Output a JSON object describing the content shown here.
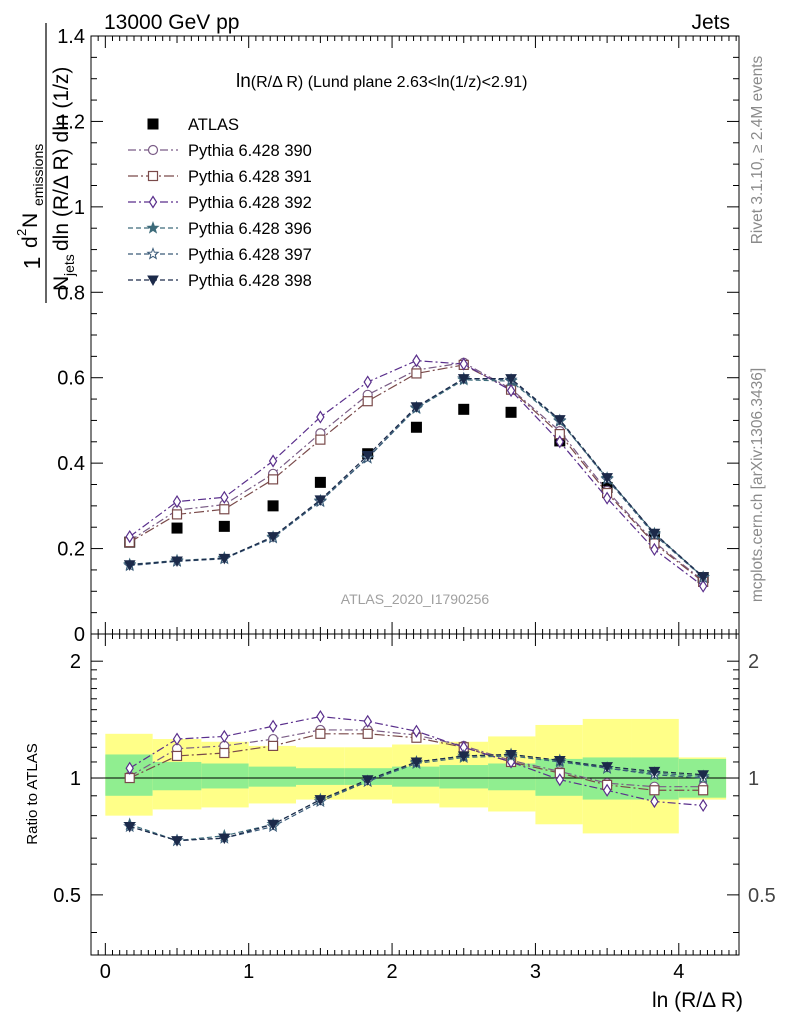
{
  "header": {
    "left": "13000 GeV pp",
    "right": "Jets"
  },
  "side_labels": {
    "rivet": "Rivet 3.1.10, ≥ 2.4M events",
    "mcplots": "mcplots.cern.ch [arXiv:1306.3436]"
  },
  "watermark": "ATLAS_2020_I1790256",
  "colors": {
    "data": "#000000",
    "band_inner": "#90ee90",
    "band_outer": "#ffff88",
    "p390": "#7a5c86",
    "p391": "#7a4a4a",
    "p392": "#5a2f8c",
    "p396": "#3d6b7a",
    "p397": "#3a5a78",
    "p398": "#1c2a4a"
  },
  "chart_data": [
    {
      "type": "scatter",
      "title_main": "ln",
      "title_rest": "(R/Δ R) (Lund plane 2.63<ln(1/z)<2.91)",
      "ylabel_parts": [
        "1",
        "N",
        "jets",
        "dln (R/Δ R) dln (1/z)",
        "d",
        "2",
        " N",
        "emissions"
      ],
      "xlim": [
        -0.1,
        4.42
      ],
      "ylim": [
        0,
        1.4
      ],
      "yticks": [
        "0",
        "0.2",
        "0.4",
        "0.6",
        "0.8",
        "1",
        "1.2",
        "1.4"
      ],
      "yticks_values": [
        0,
        0.2,
        0.4,
        0.6,
        0.8,
        1.0,
        1.2,
        1.4
      ],
      "legend_position": "top-left",
      "x": [
        0.17,
        0.5,
        0.83,
        1.17,
        1.5,
        1.83,
        2.17,
        2.5,
        2.83,
        3.17,
        3.5,
        3.83,
        4.17
      ],
      "series": [
        {
          "name": "ATLAS",
          "marker": "square-filled",
          "line": "none",
          "values": [
            0.215,
            0.248,
            0.252,
            0.3,
            0.355,
            0.422,
            0.484,
            0.526,
            0.519,
            0.452,
            0.343,
            0.228,
            0.132
          ]
        },
        {
          "name": "Pythia 6.428 390",
          "marker": "circle-open",
          "line": "dashdot",
          "values": [
            0.218,
            0.29,
            0.303,
            0.375,
            0.47,
            0.56,
            0.618,
            0.635,
            0.574,
            0.475,
            0.335,
            0.215,
            0.125
          ]
        },
        {
          "name": "Pythia 6.428 391",
          "marker": "square-open",
          "line": "dashdot2",
          "values": [
            0.215,
            0.28,
            0.292,
            0.362,
            0.455,
            0.545,
            0.61,
            0.63,
            0.572,
            0.468,
            0.33,
            0.212,
            0.122
          ]
        },
        {
          "name": "Pythia 6.428 392",
          "marker": "diamond-open",
          "line": "dashdot",
          "values": [
            0.228,
            0.31,
            0.32,
            0.405,
            0.508,
            0.59,
            0.64,
            0.632,
            0.57,
            0.45,
            0.318,
            0.198,
            0.112
          ]
        },
        {
          "name": "Pythia 6.428 396",
          "marker": "star-filled",
          "line": "dashed",
          "values": [
            0.163,
            0.172,
            0.178,
            0.227,
            0.312,
            0.412,
            0.528,
            0.595,
            0.592,
            0.498,
            0.365,
            0.235,
            0.133
          ]
        },
        {
          "name": "Pythia 6.428 397",
          "marker": "star-open",
          "line": "dashed",
          "values": [
            0.16,
            0.17,
            0.176,
            0.225,
            0.31,
            0.412,
            0.53,
            0.598,
            0.595,
            0.5,
            0.362,
            0.232,
            0.132
          ]
        },
        {
          "name": "Pythia 6.428 398",
          "marker": "triangle-down-filled",
          "line": "dashed",
          "values": [
            0.162,
            0.171,
            0.177,
            0.228,
            0.314,
            0.418,
            0.532,
            0.598,
            0.598,
            0.502,
            0.366,
            0.236,
            0.134
          ]
        }
      ]
    },
    {
      "type": "scatter",
      "ylabel": "Ratio to ATLAS",
      "xlabel": "ln (R/Δ R)",
      "xlim": [
        -0.1,
        4.42
      ],
      "ylim": [
        0.35,
        2.35
      ],
      "yticks": [
        "0.5",
        "1",
        "2"
      ],
      "yticks_values": [
        0.5,
        1.0,
        2.0
      ],
      "xticks": [
        "0",
        "1",
        "2",
        "3",
        "4"
      ],
      "xticks_values": [
        0,
        1,
        2,
        3,
        4
      ],
      "reference_line": 1.0,
      "x_edges": [
        0.0,
        0.33,
        0.67,
        1.0,
        1.33,
        1.67,
        2.0,
        2.33,
        2.67,
        3.0,
        3.33,
        3.67,
        4.0,
        4.33
      ],
      "band_inner": [
        [
          0.9,
          1.15
        ],
        [
          0.93,
          1.1
        ],
        [
          0.94,
          1.09
        ],
        [
          0.95,
          1.07
        ],
        [
          0.96,
          1.06
        ],
        [
          0.96,
          1.06
        ],
        [
          0.95,
          1.07
        ],
        [
          0.94,
          1.08
        ],
        [
          0.93,
          1.09
        ],
        [
          0.9,
          1.12
        ],
        [
          0.88,
          1.13
        ],
        [
          0.88,
          1.13
        ],
        [
          0.89,
          1.12
        ]
      ],
      "band_outer": [
        [
          0.8,
          1.3
        ],
        [
          0.83,
          1.26
        ],
        [
          0.84,
          1.24
        ],
        [
          0.86,
          1.21
        ],
        [
          0.88,
          1.2
        ],
        [
          0.88,
          1.2
        ],
        [
          0.86,
          1.22
        ],
        [
          0.84,
          1.24
        ],
        [
          0.82,
          1.28
        ],
        [
          0.76,
          1.37
        ],
        [
          0.72,
          1.42
        ],
        [
          0.72,
          1.42
        ],
        [
          0.88,
          1.13
        ]
      ],
      "series": [
        {
          "name": "Pythia 6.428 390",
          "values": [
            1.01,
            1.19,
            1.21,
            1.26,
            1.33,
            1.33,
            1.29,
            1.21,
            1.11,
            1.04,
            0.97,
            0.95,
            0.95
          ]
        },
        {
          "name": "Pythia 6.428 391",
          "values": [
            1.0,
            1.14,
            1.16,
            1.21,
            1.3,
            1.3,
            1.27,
            1.2,
            1.1,
            1.03,
            0.96,
            0.93,
            0.93
          ]
        },
        {
          "name": "Pythia 6.428 392",
          "values": [
            1.06,
            1.26,
            1.28,
            1.36,
            1.44,
            1.4,
            1.32,
            1.2,
            1.1,
            0.99,
            0.93,
            0.87,
            0.85
          ]
        },
        {
          "name": "Pythia 6.428 396",
          "values": [
            0.76,
            0.69,
            0.71,
            0.76,
            0.88,
            0.98,
            1.09,
            1.13,
            1.14,
            1.1,
            1.06,
            1.03,
            1.01
          ]
        },
        {
          "name": "Pythia 6.428 397",
          "values": [
            0.75,
            0.69,
            0.7,
            0.75,
            0.87,
            0.98,
            1.1,
            1.14,
            1.15,
            1.11,
            1.06,
            1.02,
            1.0
          ]
        },
        {
          "name": "Pythia 6.428 398",
          "values": [
            0.75,
            0.69,
            0.7,
            0.76,
            0.88,
            0.99,
            1.1,
            1.14,
            1.15,
            1.11,
            1.07,
            1.04,
            1.02
          ]
        }
      ]
    }
  ]
}
